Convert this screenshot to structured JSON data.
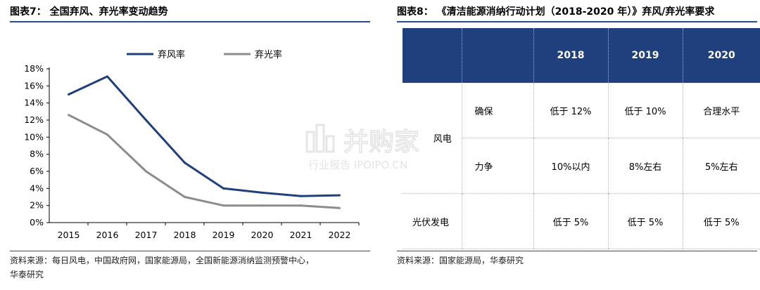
{
  "left": {
    "title": "图表7：  全国弃风、弃光率变动趋势",
    "source_line1": "资料来源：每日风电，中国政府网，国家能源局，全国新能源消纳监测预警中心，",
    "source_line2": "华泰研究"
  },
  "right": {
    "title": "图表8：  《清洁能源消纳行动计划（2018-2020 年）》弃风/弃光率要求",
    "source": "资料来源：国家能源局，华泰研究",
    "table": {
      "headers": [
        "",
        "",
        "2018",
        "2019",
        "2020"
      ],
      "rows": [
        {
          "cat": "",
          "sub": "确保",
          "v2018": "低于 12%",
          "v2019": "低于 10%",
          "v2020": "合理水平"
        },
        {
          "cat": "风电",
          "sub": "力争",
          "v2018": "10%以内",
          "v2019": "8%左右",
          "v2020": "5%左右"
        },
        {
          "cat": "光伏发电",
          "sub": "",
          "v2018": "低于  5%",
          "v2019": "低于  5%",
          "v2020": "低于  5%"
        }
      ]
    }
  },
  "watermark": {
    "title": "并购家",
    "subtitle": "行业报告 IPOIPO.CN"
  },
  "colors": {
    "wind": "#1f3f7d",
    "solar": "#8c8c8c",
    "header": "#1f3f7d",
    "rule": "#2a4b8d"
  },
  "chart_data": {
    "type": "line",
    "x": [
      "2015",
      "2016",
      "2017",
      "2018",
      "2019",
      "2020",
      "2021",
      "2022"
    ],
    "series": [
      {
        "name": "弃风率",
        "values": [
          15,
          17.1,
          12,
          7,
          4,
          3.5,
          3.1,
          3.2
        ]
      },
      {
        "name": "弃光率",
        "values": [
          12.6,
          10.3,
          6,
          3,
          2,
          2,
          2,
          1.7
        ]
      }
    ],
    "yticks": [
      "0%",
      "2%",
      "4%",
      "6%",
      "8%",
      "10%",
      "12%",
      "14%",
      "16%",
      "18%"
    ],
    "ylim": [
      0,
      18
    ],
    "legend_position": "top",
    "grid": false
  }
}
